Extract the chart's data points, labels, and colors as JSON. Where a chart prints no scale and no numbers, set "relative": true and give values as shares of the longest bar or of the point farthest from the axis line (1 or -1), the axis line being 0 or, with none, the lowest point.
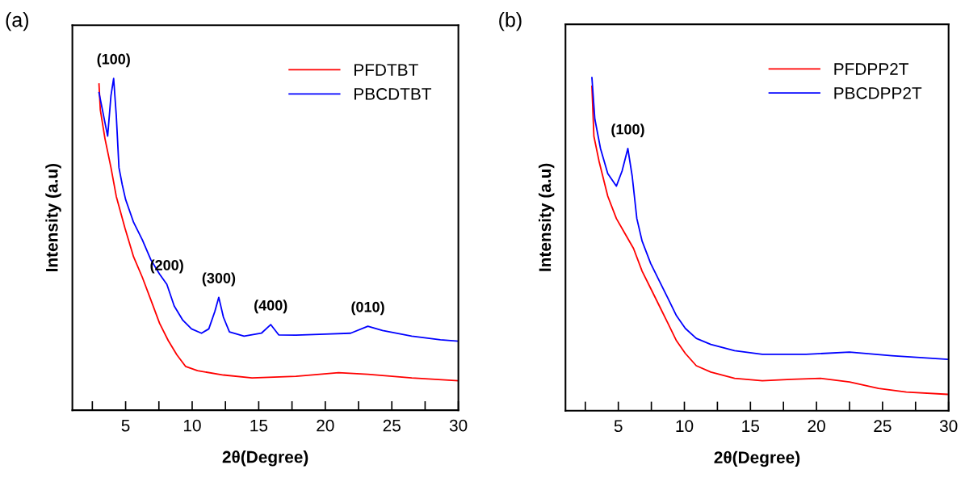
{
  "chart_data": [
    {
      "type": "line",
      "title": "(a)",
      "xlabel": "2θ(Degree)",
      "ylabel": "Intensity (a.u)",
      "relative": true,
      "xlim": [
        1,
        30
      ],
      "xticks": [
        {
          "value": 2.5,
          "label": null
        },
        5,
        {
          "value": 7.5,
          "label": null
        },
        10,
        {
          "value": 12.5,
          "label": null
        },
        15,
        {
          "value": 17.5,
          "label": null
        },
        20,
        {
          "value": 22.5,
          "label": null
        },
        25,
        {
          "value": 27.5,
          "label": null
        },
        30
      ],
      "legend": "top right",
      "grid": false,
      "series": [
        {
          "name": "PFDTBT",
          "color": "#ff0000",
          "x": [
            3.0,
            3.1,
            3.45,
            3.9,
            4.3,
            4.95,
            5.6,
            6.25,
            6.9,
            7.55,
            8.2,
            8.85,
            9.5,
            10.4,
            12.35,
            14.5,
            17.8,
            21.0,
            23.2,
            26.5,
            29.95
          ],
          "values": [
            0.983,
            0.905,
            0.818,
            0.731,
            0.644,
            0.549,
            0.462,
            0.401,
            0.332,
            0.262,
            0.21,
            0.167,
            0.132,
            0.119,
            0.106,
            0.097,
            0.102,
            0.113,
            0.108,
            0.097,
            0.089
          ]
        },
        {
          "name": "PBCDTBT",
          "color": "#0000ff",
          "x": [
            3.0,
            3.65,
            3.9,
            4.1,
            4.3,
            4.5,
            4.75,
            5.0,
            5.6,
            6.25,
            6.9,
            7.55,
            8.1,
            8.65,
            9.3,
            9.95,
            10.7,
            11.25,
            11.7,
            12.0,
            12.35,
            12.8,
            13.9,
            15.2,
            15.9,
            16.5,
            17.8,
            20.0,
            21.9,
            23.2,
            24.3,
            26.5,
            28.65,
            29.95
          ],
          "values": [
            0.957,
            0.826,
            0.948,
            1.0,
            0.887,
            0.731,
            0.679,
            0.635,
            0.566,
            0.514,
            0.453,
            0.41,
            0.379,
            0.314,
            0.271,
            0.245,
            0.232,
            0.245,
            0.297,
            0.34,
            0.28,
            0.236,
            0.223,
            0.232,
            0.258,
            0.227,
            0.226,
            0.229,
            0.232,
            0.253,
            0.24,
            0.223,
            0.212,
            0.208
          ]
        }
      ],
      "annotations": [
        {
          "text": "(100)",
          "x": 4.1,
          "y": 1.0
        },
        {
          "text": "(200)",
          "x": 8.1,
          "y": 0.379
        },
        {
          "text": "(300)",
          "x": 12.0,
          "y": 0.34
        },
        {
          "text": "(400)",
          "x": 15.9,
          "y": 0.258
        },
        {
          "text": "(010)",
          "x": 23.2,
          "y": 0.253
        }
      ]
    },
    {
      "type": "line",
      "title": "(b)",
      "xlabel": "2θ(Degree)",
      "ylabel": "Intensity (a.u)",
      "relative": true,
      "xlim": [
        1,
        30
      ],
      "xticks": [
        {
          "value": 2.5,
          "label": null
        },
        5,
        {
          "value": 7.5,
          "label": null
        },
        10,
        {
          "value": 12.5,
          "label": null
        },
        15,
        {
          "value": 17.5,
          "label": null
        },
        20,
        {
          "value": 22.5,
          "label": null
        },
        25,
        {
          "value": 27.5,
          "label": null
        },
        30
      ],
      "legend": "top right",
      "grid": false,
      "series": [
        {
          "name": "PFDPP2T",
          "color": "#ff0000",
          "x": [
            3.0,
            3.15,
            3.54,
            4.2,
            4.85,
            5.5,
            6.15,
            6.8,
            7.45,
            8.1,
            8.76,
            9.4,
            10.07,
            10.9,
            12.0,
            13.8,
            15.9,
            18.1,
            20.3,
            22.5,
            24.7,
            26.8,
            29.9
          ],
          "values": [
            0.974,
            0.824,
            0.749,
            0.644,
            0.577,
            0.532,
            0.487,
            0.419,
            0.367,
            0.315,
            0.262,
            0.21,
            0.172,
            0.135,
            0.116,
            0.097,
            0.09,
            0.094,
            0.097,
            0.086,
            0.067,
            0.056,
            0.049
          ]
        },
        {
          "name": "PBCDPP2T",
          "color": "#0000ff",
          "x": [
            3.0,
            3.22,
            3.65,
            4.2,
            4.85,
            5.28,
            5.72,
            6.05,
            6.4,
            6.8,
            7.45,
            8.1,
            8.76,
            9.4,
            10.07,
            10.9,
            12.0,
            13.8,
            15.9,
            19.2,
            22.5,
            25.7,
            29.9
          ],
          "values": [
            1.0,
            0.876,
            0.787,
            0.712,
            0.674,
            0.719,
            0.787,
            0.704,
            0.577,
            0.509,
            0.442,
            0.39,
            0.337,
            0.285,
            0.247,
            0.217,
            0.199,
            0.18,
            0.169,
            0.169,
            0.176,
            0.165,
            0.154
          ]
        }
      ],
      "annotations": [
        {
          "text": "(100)",
          "x": 5.72,
          "y": 0.787
        }
      ]
    }
  ]
}
